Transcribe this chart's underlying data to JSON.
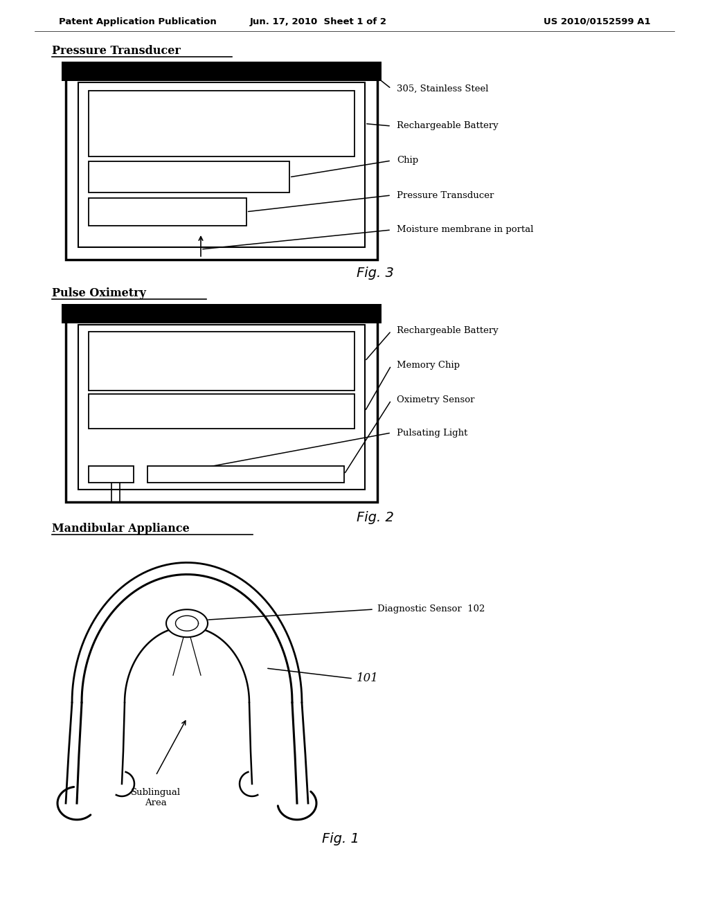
{
  "bg_color": "#ffffff",
  "header_left": "Patent Application Publication",
  "header_mid": "Jun. 17, 2010  Sheet 1 of 2",
  "header_right": "US 2010/0152599 A1",
  "section1_title": "Pressure Transducer",
  "fig3_label": "Fig. 3",
  "pt_labels": [
    "305, Stainless Steel",
    "Rechargeable Battery",
    "Chip",
    "Pressure Transducer",
    "Moisture membrane in portal"
  ],
  "section2_title": "Pulse Oximetry",
  "fig2_label": "Fig. 2",
  "po_labels": [
    "Rechargeable Battery",
    "Memory Chip",
    "Oximetry Sensor",
    "Pulsating Light"
  ],
  "section3_title": "Mandibular Appliance",
  "fig1_label": "Fig. 1",
  "diag_sensor_label": "Diagnostic Sensor  102",
  "label_101": "101",
  "sublingual_label": "Sublingual\nArea"
}
